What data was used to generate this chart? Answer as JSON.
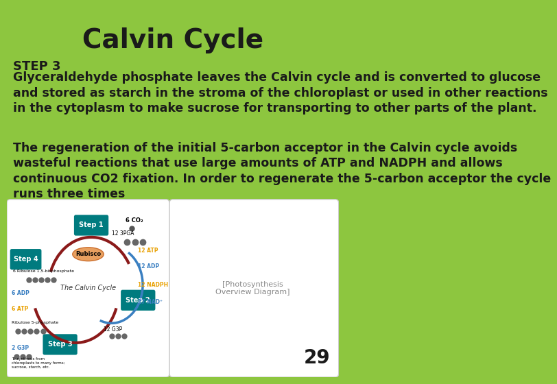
{
  "title": "Calvin Cycle",
  "title_fontsize": 28,
  "title_fontweight": "bold",
  "title_color": "#1a1a1a",
  "bg_color": "#8dc63f",
  "text_color": "#1a1a1a",
  "step3_label": "STEP 3",
  "step3_label_fontsize": 13,
  "step3_label_fontweight": "bold",
  "paragraph1": "Glyceraldehyde phosphate leaves the Calvin cycle and is converted to glucose\nand stored as starch in the stroma of the chloroplast or used in other reactions\nin the cytoplasm to make sucrose for transporting to other parts of the plant.",
  "paragraph1_fontsize": 12.5,
  "paragraph1_fontweight": "bold",
  "paragraph2": "The regeneration of the initial 5-carbon acceptor in the Calvin cycle avoids\nwasteful reactions that use large amounts of ATP and NADPH and allows\ncontinuous CO2 fixation. In order to regenerate the 5-carbon acceptor the cycle\nruns three times",
  "paragraph2_fontsize": 12.5,
  "paragraph2_fontweight": "bold",
  "page_number": "29",
  "page_number_fontsize": 20,
  "page_number_fontweight": "bold"
}
